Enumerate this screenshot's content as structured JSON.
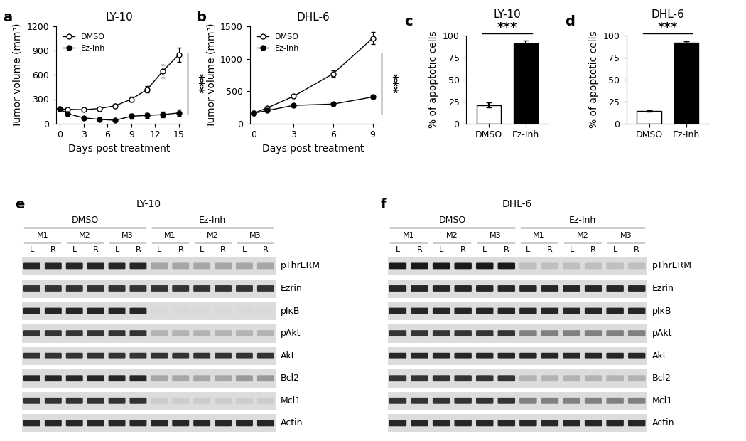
{
  "chart_data": [
    {
      "type": "line",
      "panel": "a",
      "title": "LY-10",
      "x_label": "Days post treatment",
      "y_label": "Tumor volume (mm³)",
      "x": [
        0,
        1,
        3,
        5,
        7,
        9,
        11,
        13,
        15
      ],
      "series": [
        {
          "name": "DMSO",
          "color": "white",
          "marker": "o",
          "values": [
            180,
            175,
            170,
            185,
            220,
            300,
            420,
            650,
            850
          ],
          "errors": [
            15,
            15,
            15,
            15,
            25,
            30,
            40,
            80,
            90
          ]
        },
        {
          "name": "Ez-Inh",
          "color": "black",
          "marker": "o",
          "values": [
            180,
            120,
            70,
            50,
            40,
            90,
            100,
            110,
            130
          ],
          "errors": [
            15,
            15,
            10,
            10,
            10,
            30,
            30,
            35,
            40
          ]
        }
      ],
      "xlim": [
        -0.5,
        15.5
      ],
      "xticks": [
        0,
        3,
        6,
        9,
        12,
        15
      ],
      "ylim": [
        0,
        1200
      ],
      "yticks": [
        0,
        300,
        600,
        900,
        1200
      ],
      "legend": "upper left",
      "significance": "***"
    },
    {
      "type": "line",
      "panel": "b",
      "title": "DHL-6",
      "x_label": "Days post treatment",
      "y_label": "Tumor volume (mm³)",
      "x": [
        0,
        1,
        3,
        6,
        9
      ],
      "series": [
        {
          "name": "DMSO",
          "color": "white",
          "marker": "o",
          "values": [
            160,
            240,
            420,
            770,
            1320
          ],
          "errors": [
            10,
            15,
            20,
            50,
            90
          ]
        },
        {
          "name": "Ez-Inh",
          "color": "black",
          "marker": "o",
          "values": [
            160,
            200,
            280,
            300,
            410
          ],
          "errors": [
            10,
            10,
            15,
            15,
            20
          ]
        }
      ],
      "xlim": [
        -0.3,
        9.3
      ],
      "xticks": [
        0,
        3,
        6,
        9
      ],
      "ylim": [
        0,
        1500
      ],
      "yticks": [
        0,
        500,
        1000,
        1500
      ],
      "legend": "upper left",
      "significance": "***"
    },
    {
      "type": "bar",
      "panel": "c",
      "title": "LY-10",
      "y_label": "% of apoptotic cells",
      "categories": [
        "DMSO",
        "Ez-Inh"
      ],
      "values": [
        21,
        91
      ],
      "errors": [
        3,
        3
      ],
      "colors": [
        "white",
        "black"
      ],
      "ylim": [
        0,
        100
      ],
      "yticks": [
        0,
        25,
        50,
        75,
        100
      ],
      "significance": "***"
    },
    {
      "type": "bar",
      "panel": "d",
      "title": "DHL-6",
      "y_label": "% of apoptotic cells",
      "categories": [
        "DMSO",
        "Ez-Inh"
      ],
      "values": [
        14,
        92
      ],
      "errors": [
        1,
        1
      ],
      "colors": [
        "white",
        "black"
      ],
      "ylim": [
        0,
        100
      ],
      "yticks": [
        0,
        25,
        50,
        75,
        100
      ],
      "significance": "***"
    },
    {
      "type": "blot",
      "panel": "e",
      "title": "LY-10",
      "groups": [
        {
          "name": "DMSO",
          "mice": [
            "M1",
            "M2",
            "M3"
          ]
        },
        {
          "name": "Ez-Inh",
          "mice": [
            "M1",
            "M2",
            "M3"
          ]
        }
      ],
      "lanes": [
        "L",
        "R"
      ],
      "rows": [
        {
          "name": "pThrERM",
          "intensity": [
            0.85,
            0.85,
            0.85,
            0.85,
            0.85,
            0.85,
            0.35,
            0.35,
            0.35,
            0.35,
            0.35,
            0.35
          ]
        },
        {
          "name": "Ezrin",
          "intensity": [
            0.8,
            0.8,
            0.8,
            0.8,
            0.8,
            0.8,
            0.8,
            0.8,
            0.8,
            0.8,
            0.8,
            0.8
          ]
        },
        {
          "name": "pIκB",
          "intensity": [
            0.85,
            0.85,
            0.85,
            0.85,
            0.85,
            0.85,
            0.15,
            0.15,
            0.15,
            0.15,
            0.15,
            0.15
          ]
        },
        {
          "name": "pAkt",
          "intensity": [
            0.8,
            0.8,
            0.8,
            0.8,
            0.8,
            0.8,
            0.3,
            0.3,
            0.3,
            0.3,
            0.3,
            0.3
          ]
        },
        {
          "name": "Akt",
          "intensity": [
            0.8,
            0.8,
            0.8,
            0.8,
            0.8,
            0.8,
            0.8,
            0.8,
            0.8,
            0.8,
            0.8,
            0.8
          ]
        },
        {
          "name": "Bcl2",
          "intensity": [
            0.85,
            0.85,
            0.85,
            0.85,
            0.85,
            0.85,
            0.35,
            0.35,
            0.35,
            0.35,
            0.4,
            0.4
          ]
        },
        {
          "name": "Mcl1",
          "intensity": [
            0.8,
            0.8,
            0.8,
            0.8,
            0.8,
            0.8,
            0.2,
            0.2,
            0.2,
            0.2,
            0.2,
            0.2
          ]
        },
        {
          "name": "Actin",
          "intensity": [
            0.85,
            0.85,
            0.85,
            0.85,
            0.85,
            0.85,
            0.85,
            0.85,
            0.85,
            0.85,
            0.85,
            0.85
          ]
        }
      ]
    },
    {
      "type": "blot",
      "panel": "f",
      "title": "DHL-6",
      "groups": [
        {
          "name": "DMSO",
          "mice": [
            "M1",
            "M2",
            "M3"
          ]
        },
        {
          "name": "Ez-Inh",
          "mice": [
            "M1",
            "M2",
            "M3"
          ]
        }
      ],
      "lanes": [
        "L",
        "R"
      ],
      "rows": [
        {
          "name": "pThrERM",
          "intensity": [
            0.9,
            0.9,
            0.9,
            0.9,
            0.9,
            0.9,
            0.25,
            0.25,
            0.25,
            0.25,
            0.25,
            0.25
          ]
        },
        {
          "name": "Ezrin",
          "intensity": [
            0.85,
            0.85,
            0.85,
            0.85,
            0.85,
            0.85,
            0.85,
            0.85,
            0.85,
            0.85,
            0.85,
            0.85
          ]
        },
        {
          "name": "pIκB",
          "intensity": [
            0.85,
            0.85,
            0.85,
            0.85,
            0.85,
            0.85,
            0.85,
            0.85,
            0.85,
            0.85,
            0.85,
            0.85
          ]
        },
        {
          "name": "pAkt",
          "intensity": [
            0.8,
            0.8,
            0.8,
            0.8,
            0.8,
            0.8,
            0.5,
            0.5,
            0.5,
            0.5,
            0.5,
            0.5
          ]
        },
        {
          "name": "Akt",
          "intensity": [
            0.85,
            0.85,
            0.85,
            0.85,
            0.85,
            0.85,
            0.85,
            0.85,
            0.85,
            0.85,
            0.85,
            0.85
          ]
        },
        {
          "name": "Bcl2",
          "intensity": [
            0.8,
            0.8,
            0.8,
            0.8,
            0.8,
            0.8,
            0.3,
            0.3,
            0.3,
            0.3,
            0.3,
            0.3
          ]
        },
        {
          "name": "Mcl1",
          "intensity": [
            0.8,
            0.8,
            0.8,
            0.8,
            0.8,
            0.8,
            0.5,
            0.5,
            0.5,
            0.5,
            0.5,
            0.5
          ]
        },
        {
          "name": "Actin",
          "intensity": [
            0.85,
            0.85,
            0.85,
            0.85,
            0.85,
            0.85,
            0.85,
            0.85,
            0.85,
            0.85,
            0.85,
            0.85
          ]
        }
      ]
    }
  ]
}
